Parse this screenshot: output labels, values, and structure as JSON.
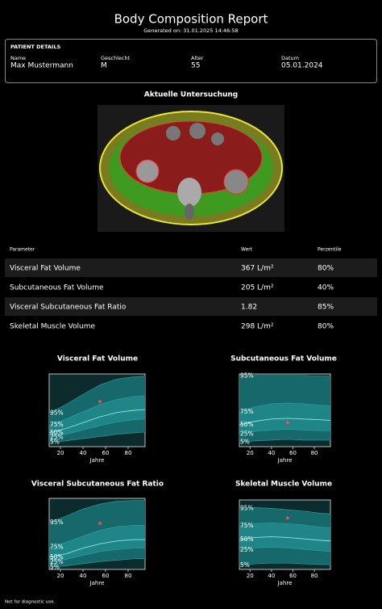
{
  "header": {
    "title": "Body Composition Report",
    "generated": "Generated on: 31.01.2025 14:46:58"
  },
  "patient": {
    "heading": "PATIENT DETAILS",
    "fields": [
      {
        "label": "Name",
        "value": "Max Mustermann"
      },
      {
        "label": "Geschlecht",
        "value": "M"
      },
      {
        "label": "Alter",
        "value": "55"
      },
      {
        "label": "Datum",
        "value": "05.01.2024"
      }
    ]
  },
  "image_title": "Aktuelle Untersuchung",
  "table": {
    "headers": [
      "Parameter",
      "Wert",
      "Perzentile"
    ],
    "rows": [
      {
        "parameter": "Visceral Fat Volume",
        "value": "367 L/m²",
        "percentile": "80%",
        "color": "#ff2a2a"
      },
      {
        "parameter": "Subcutaneous Fat Volume",
        "value": "205 L/m²",
        "percentile": "40%",
        "color": "#ffee33"
      },
      {
        "parameter": "Visceral Subcutaneous Fat Ratio",
        "value": "1.82",
        "percentile": "85%",
        "color": "#ffffff"
      },
      {
        "parameter": "Skeletal Muscle Volume",
        "value": "298 L/m²",
        "percentile": "80%",
        "color": "#33ee33"
      }
    ]
  },
  "chart_data": [
    {
      "type": "line",
      "title": "Visceral Fat Volume",
      "title_color": "#ff2a2a",
      "xlabel": "Jahre",
      "x": [
        10,
        25,
        40,
        55,
        70,
        85,
        95
      ],
      "xlim": [
        10,
        95
      ],
      "xticks": [
        20,
        40,
        60,
        80
      ],
      "ylim": [
        0,
        100
      ],
      "series": [
        {
          "name": "95%",
          "values": [
            46,
            58,
            72,
            85,
            93,
            96,
            97
          ]
        },
        {
          "name": "75%",
          "values": [
            30,
            38,
            48,
            58,
            65,
            69,
            70
          ]
        },
        {
          "name": "50%",
          "values": [
            19,
            25,
            33,
            41,
            47,
            50,
            51
          ]
        },
        {
          "name": "25%",
          "values": [
            13,
            17,
            23,
            29,
            34,
            37,
            38
          ]
        },
        {
          "name": "5%",
          "values": [
            6,
            8,
            11,
            14,
            17,
            19,
            20
          ]
        }
      ],
      "patient": {
        "x": 55,
        "y": 62,
        "color": "#ff5050"
      }
    },
    {
      "type": "line",
      "title": "Subcutaneous Fat Volume",
      "title_color": "#ffee33",
      "xlabel": "Jahre",
      "x": [
        10,
        25,
        40,
        55,
        70,
        85,
        95
      ],
      "xlim": [
        10,
        95
      ],
      "xticks": [
        20,
        40,
        60,
        80
      ],
      "ylim": [
        0,
        100
      ],
      "series": [
        {
          "name": "95%",
          "values": [
            97,
            98,
            98,
            98,
            98,
            97,
            97
          ]
        },
        {
          "name": "75%",
          "values": [
            48,
            55,
            59,
            60,
            59,
            57,
            56
          ]
        },
        {
          "name": "50%",
          "values": [
            30,
            35,
            38,
            39,
            38,
            37,
            36
          ]
        },
        {
          "name": "25%",
          "values": [
            17,
            21,
            23,
            24,
            23,
            22,
            22
          ]
        },
        {
          "name": "5%",
          "values": [
            6,
            8,
            9,
            10,
            9,
            9,
            9
          ]
        }
      ],
      "patient": {
        "x": 55,
        "y": 33,
        "color": "#ff5050"
      }
    },
    {
      "type": "line",
      "title": "Visceral Subcutaneous Fat Ratio",
      "title_color": "#ffffff",
      "xlabel": "Jahre",
      "x": [
        10,
        25,
        40,
        55,
        70,
        85,
        95
      ],
      "xlim": [
        10,
        95
      ],
      "xticks": [
        20,
        40,
        60,
        80
      ],
      "ylim": [
        0,
        100
      ],
      "series": [
        {
          "name": "95%",
          "values": [
            66,
            75,
            85,
            92,
            96,
            97,
            97
          ]
        },
        {
          "name": "75%",
          "values": [
            31,
            38,
            47,
            55,
            60,
            62,
            62
          ]
        },
        {
          "name": "50%",
          "values": [
            17,
            22,
            30,
            36,
            40,
            42,
            42
          ]
        },
        {
          "name": "25%",
          "values": [
            10,
            14,
            20,
            25,
            28,
            30,
            30
          ]
        },
        {
          "name": "5%",
          "values": [
            3,
            5,
            8,
            11,
            13,
            15,
            15
          ]
        }
      ],
      "patient": {
        "x": 55,
        "y": 65,
        "color": "#ff5050"
      }
    },
    {
      "type": "line",
      "title": "Skeletal Muscle Volume",
      "title_color": "#33ee33",
      "xlabel": "Jahre",
      "x": [
        10,
        25,
        40,
        55,
        70,
        85,
        95
      ],
      "xlim": [
        10,
        95
      ],
      "xticks": [
        20,
        40,
        60,
        80
      ],
      "ylim": [
        0,
        100
      ],
      "series": [
        {
          "name": "95%",
          "values": [
            88,
            89,
            88,
            86,
            84,
            81,
            80
          ]
        },
        {
          "name": "75%",
          "values": [
            63,
            66,
            67,
            66,
            64,
            61,
            60
          ]
        },
        {
          "name": "50%",
          "values": [
            43,
            46,
            47,
            46,
            44,
            42,
            41
          ]
        },
        {
          "name": "25%",
          "values": [
            28,
            31,
            32,
            31,
            29,
            27,
            26
          ]
        },
        {
          "name": "5%",
          "values": [
            6,
            8,
            9,
            9,
            8,
            7,
            7
          ]
        }
      ],
      "patient": {
        "x": 55,
        "y": 74,
        "color": "#ff5050"
      }
    }
  ],
  "footer": "Not for diagnostic use."
}
